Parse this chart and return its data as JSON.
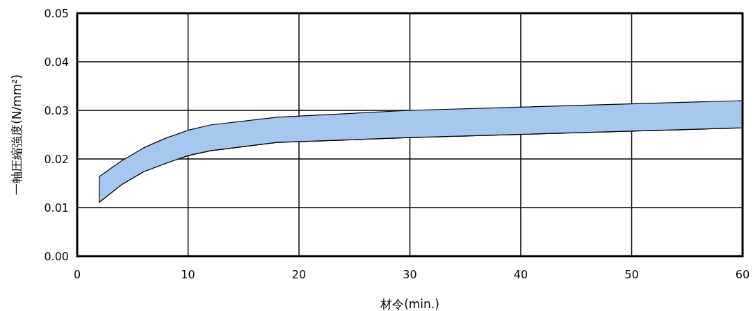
{
  "chart_data": {
    "type": "area",
    "stacked": true,
    "xlabel": "材令(min.)",
    "ylabel": "一軸圧縮強度(N/mm²)",
    "x": [
      2,
      4,
      6,
      8,
      10,
      12,
      18,
      30,
      60
    ],
    "series": [
      {
        "color": "#ffffff",
        "values": [
          0.0111,
          0.0147,
          0.0174,
          0.0191,
          0.0207,
          0.0217,
          0.0234,
          0.0244,
          0.0264
        ]
      },
      {
        "color": "#a6c8ee",
        "values": [
          0.0053,
          0.0049,
          0.0049,
          0.0052,
          0.0052,
          0.0053,
          0.0052,
          0.0056,
          0.0056
        ]
      }
    ],
    "xlim": [
      0,
      60
    ],
    "xticks": [
      0,
      10,
      20,
      30,
      40,
      50,
      60
    ],
    "ylim": [
      0,
      0.05
    ],
    "yticks": [
      {
        "value": 0,
        "label": "0.00"
      },
      {
        "value": 0.01,
        "label": "0.01"
      },
      {
        "value": 0.02,
        "label": "0.02"
      },
      {
        "value": 0.03,
        "label": "0.03"
      },
      {
        "value": 0.04,
        "label": "0.04"
      },
      {
        "value": 0.05,
        "label": "0.05"
      }
    ],
    "grid": true
  }
}
